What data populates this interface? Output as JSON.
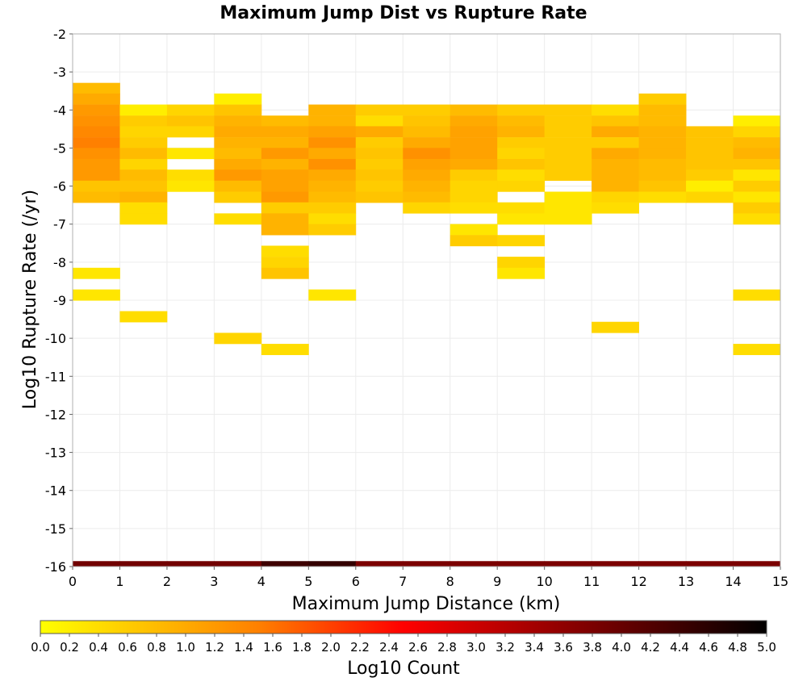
{
  "chart_data": {
    "type": "heatmap",
    "title": "Maximum Jump Dist vs Rupture Rate",
    "xlabel": "Maximum Jump Distance (km)",
    "ylabel": "Log10 Rupture Rate (/yr)",
    "xlim": [
      0,
      15
    ],
    "ylim": [
      -16,
      -2
    ],
    "x_ticks": [
      "0",
      "1",
      "2",
      "3",
      "4",
      "5",
      "6",
      "7",
      "8",
      "9",
      "10",
      "11",
      "12",
      "13",
      "14",
      "15"
    ],
    "y_ticks": [
      "-2",
      "-3",
      "-4",
      "-5",
      "-6",
      "-7",
      "-8",
      "-9",
      "-10",
      "-11",
      "-12",
      "-13",
      "-14",
      "-15",
      "-16"
    ],
    "x_bin_width": 1,
    "y_bin_width": 0.286,
    "grid": true,
    "colorbar": {
      "label": "Log10 Count",
      "range": [
        0,
        5
      ],
      "ticks": [
        "0.0",
        "0.2",
        "0.4",
        "0.6",
        "0.8",
        "1.0",
        "1.2",
        "1.4",
        "1.6",
        "1.8",
        "2.0",
        "2.2",
        "2.4",
        "2.6",
        "2.8",
        "3.0",
        "3.2",
        "3.4",
        "3.6",
        "3.8",
        "4.0",
        "4.2",
        "4.4",
        "4.6",
        "4.8",
        "5.0"
      ],
      "colors": [
        "#ffff00",
        "#ff8000",
        "#ff0000",
        "#800000",
        "#000000"
      ]
    },
    "bins": [
      {
        "x": 0,
        "y": -3.43,
        "v": 0.8
      },
      {
        "x": 0,
        "y": -3.71,
        "v": 1.0
      },
      {
        "x": 0,
        "y": -4.0,
        "v": 1.2
      },
      {
        "x": 0,
        "y": -4.29,
        "v": 1.3
      },
      {
        "x": 0,
        "y": -4.57,
        "v": 1.4
      },
      {
        "x": 0,
        "y": -4.86,
        "v": 1.5
      },
      {
        "x": 0,
        "y": -5.14,
        "v": 1.3
      },
      {
        "x": 0,
        "y": -5.43,
        "v": 1.2
      },
      {
        "x": 0,
        "y": -5.71,
        "v": 1.2
      },
      {
        "x": 0,
        "y": -6.0,
        "v": 0.7
      },
      {
        "x": 0,
        "y": -6.29,
        "v": 0.8
      },
      {
        "x": 0,
        "y": -8.29,
        "v": 0.3
      },
      {
        "x": 0,
        "y": -8.86,
        "v": 0.3
      },
      {
        "x": 1,
        "y": -4.0,
        "v": 0.2
      },
      {
        "x": 1,
        "y": -4.29,
        "v": 0.6
      },
      {
        "x": 1,
        "y": -4.57,
        "v": 0.5
      },
      {
        "x": 1,
        "y": -4.86,
        "v": 0.6
      },
      {
        "x": 1,
        "y": -5.14,
        "v": 0.8
      },
      {
        "x": 1,
        "y": -5.43,
        "v": 0.5
      },
      {
        "x": 1,
        "y": -5.71,
        "v": 0.8
      },
      {
        "x": 1,
        "y": -6.0,
        "v": 0.7
      },
      {
        "x": 1,
        "y": -6.29,
        "v": 0.9
      },
      {
        "x": 1,
        "y": -6.57,
        "v": 0.4
      },
      {
        "x": 1,
        "y": -6.86,
        "v": 0.4
      },
      {
        "x": 1,
        "y": -9.43,
        "v": 0.4
      },
      {
        "x": 2,
        "y": -4.0,
        "v": 0.5
      },
      {
        "x": 2,
        "y": -4.29,
        "v": 0.7
      },
      {
        "x": 2,
        "y": -4.57,
        "v": 0.5
      },
      {
        "x": 2,
        "y": -5.14,
        "v": 0.3
      },
      {
        "x": 2,
        "y": -5.71,
        "v": 0.4
      },
      {
        "x": 2,
        "y": -6.0,
        "v": 0.3
      },
      {
        "x": 3,
        "y": -3.71,
        "v": 0.2
      },
      {
        "x": 3,
        "y": -4.0,
        "v": 0.7
      },
      {
        "x": 3,
        "y": -4.29,
        "v": 0.9
      },
      {
        "x": 3,
        "y": -4.57,
        "v": 1.0
      },
      {
        "x": 3,
        "y": -4.86,
        "v": 0.9
      },
      {
        "x": 3,
        "y": -5.14,
        "v": 0.8
      },
      {
        "x": 3,
        "y": -5.43,
        "v": 1.0
      },
      {
        "x": 3,
        "y": -5.71,
        "v": 1.2
      },
      {
        "x": 3,
        "y": -6.0,
        "v": 0.8
      },
      {
        "x": 3,
        "y": -6.29,
        "v": 0.6
      },
      {
        "x": 3,
        "y": -6.86,
        "v": 0.4
      },
      {
        "x": 3,
        "y": -10.0,
        "v": 0.5
      },
      {
        "x": 4,
        "y": -4.29,
        "v": 0.8
      },
      {
        "x": 4,
        "y": -4.57,
        "v": 1.0
      },
      {
        "x": 4,
        "y": -4.86,
        "v": 0.9
      },
      {
        "x": 4,
        "y": -5.14,
        "v": 1.2
      },
      {
        "x": 4,
        "y": -5.43,
        "v": 0.9
      },
      {
        "x": 4,
        "y": -5.71,
        "v": 1.1
      },
      {
        "x": 4,
        "y": -6.0,
        "v": 1.1
      },
      {
        "x": 4,
        "y": -6.29,
        "v": 1.2
      },
      {
        "x": 4,
        "y": -6.57,
        "v": 0.6
      },
      {
        "x": 4,
        "y": -6.86,
        "v": 0.9
      },
      {
        "x": 4,
        "y": -7.14,
        "v": 0.9
      },
      {
        "x": 4,
        "y": -7.71,
        "v": 0.4
      },
      {
        "x": 4,
        "y": -8.0,
        "v": 0.5
      },
      {
        "x": 4,
        "y": -8.29,
        "v": 0.7
      },
      {
        "x": 4,
        "y": -10.29,
        "v": 0.4
      },
      {
        "x": 5,
        "y": -4.0,
        "v": 0.9
      },
      {
        "x": 5,
        "y": -4.29,
        "v": 0.9
      },
      {
        "x": 5,
        "y": -4.57,
        "v": 1.1
      },
      {
        "x": 5,
        "y": -4.86,
        "v": 1.3
      },
      {
        "x": 5,
        "y": -5.14,
        "v": 1.0
      },
      {
        "x": 5,
        "y": -5.43,
        "v": 1.3
      },
      {
        "x": 5,
        "y": -5.71,
        "v": 1.0
      },
      {
        "x": 5,
        "y": -6.0,
        "v": 0.9
      },
      {
        "x": 5,
        "y": -6.29,
        "v": 0.8
      },
      {
        "x": 5,
        "y": -6.57,
        "v": 0.6
      },
      {
        "x": 5,
        "y": -6.86,
        "v": 0.4
      },
      {
        "x": 5,
        "y": -7.14,
        "v": 0.6
      },
      {
        "x": 5,
        "y": -8.86,
        "v": 0.3
      },
      {
        "x": 6,
        "y": -4.0,
        "v": 0.6
      },
      {
        "x": 6,
        "y": -4.29,
        "v": 0.4
      },
      {
        "x": 6,
        "y": -4.57,
        "v": 1.0
      },
      {
        "x": 6,
        "y": -4.86,
        "v": 0.6
      },
      {
        "x": 6,
        "y": -5.14,
        "v": 0.7
      },
      {
        "x": 6,
        "y": -5.43,
        "v": 0.6
      },
      {
        "x": 6,
        "y": -5.71,
        "v": 0.7
      },
      {
        "x": 6,
        "y": -6.0,
        "v": 0.6
      },
      {
        "x": 6,
        "y": -6.29,
        "v": 0.7
      },
      {
        "x": 7,
        "y": -4.0,
        "v": 0.6
      },
      {
        "x": 7,
        "y": -4.29,
        "v": 0.7
      },
      {
        "x": 7,
        "y": -4.57,
        "v": 0.8
      },
      {
        "x": 7,
        "y": -4.86,
        "v": 1.0
      },
      {
        "x": 7,
        "y": -5.14,
        "v": 1.3
      },
      {
        "x": 7,
        "y": -5.43,
        "v": 1.1
      },
      {
        "x": 7,
        "y": -5.71,
        "v": 1.0
      },
      {
        "x": 7,
        "y": -6.0,
        "v": 0.9
      },
      {
        "x": 7,
        "y": -6.29,
        "v": 0.8
      },
      {
        "x": 7,
        "y": -6.57,
        "v": 0.5
      },
      {
        "x": 8,
        "y": -4.0,
        "v": 0.8
      },
      {
        "x": 8,
        "y": -4.29,
        "v": 1.0
      },
      {
        "x": 8,
        "y": -4.57,
        "v": 1.1
      },
      {
        "x": 8,
        "y": -4.86,
        "v": 1.1
      },
      {
        "x": 8,
        "y": -5.14,
        "v": 1.1
      },
      {
        "x": 8,
        "y": -5.43,
        "v": 1.0
      },
      {
        "x": 8,
        "y": -5.71,
        "v": 0.6
      },
      {
        "x": 8,
        "y": -6.0,
        "v": 0.5
      },
      {
        "x": 8,
        "y": -6.29,
        "v": 0.5
      },
      {
        "x": 8,
        "y": -6.57,
        "v": 0.4
      },
      {
        "x": 8,
        "y": -7.14,
        "v": 0.3
      },
      {
        "x": 8,
        "y": -7.43,
        "v": 0.6
      },
      {
        "x": 9,
        "y": -4.0,
        "v": 0.6
      },
      {
        "x": 9,
        "y": -4.29,
        "v": 0.8
      },
      {
        "x": 9,
        "y": -4.57,
        "v": 0.9
      },
      {
        "x": 9,
        "y": -4.86,
        "v": 0.6
      },
      {
        "x": 9,
        "y": -5.14,
        "v": 0.5
      },
      {
        "x": 9,
        "y": -5.43,
        "v": 0.7
      },
      {
        "x": 9,
        "y": -5.71,
        "v": 0.4
      },
      {
        "x": 9,
        "y": -6.0,
        "v": 0.5
      },
      {
        "x": 9,
        "y": -6.57,
        "v": 0.4
      },
      {
        "x": 9,
        "y": -6.86,
        "v": 0.3
      },
      {
        "x": 9,
        "y": -7.43,
        "v": 0.5
      },
      {
        "x": 9,
        "y": -8.0,
        "v": 0.5
      },
      {
        "x": 9,
        "y": -8.29,
        "v": 0.3
      },
      {
        "x": 10,
        "y": -4.0,
        "v": 0.6
      },
      {
        "x": 10,
        "y": -4.29,
        "v": 0.6
      },
      {
        "x": 10,
        "y": -4.57,
        "v": 0.6
      },
      {
        "x": 10,
        "y": -4.86,
        "v": 0.6
      },
      {
        "x": 10,
        "y": -5.14,
        "v": 0.6
      },
      {
        "x": 10,
        "y": -5.43,
        "v": 0.6
      },
      {
        "x": 10,
        "y": -5.71,
        "v": 0.6
      },
      {
        "x": 10,
        "y": -6.29,
        "v": 0.3
      },
      {
        "x": 10,
        "y": -6.57,
        "v": 0.3
      },
      {
        "x": 10,
        "y": -6.86,
        "v": 0.3
      },
      {
        "x": 11,
        "y": -4.0,
        "v": 0.4
      },
      {
        "x": 11,
        "y": -4.29,
        "v": 0.7
      },
      {
        "x": 11,
        "y": -4.57,
        "v": 1.0
      },
      {
        "x": 11,
        "y": -4.86,
        "v": 0.6
      },
      {
        "x": 11,
        "y": -5.14,
        "v": 1.0
      },
      {
        "x": 11,
        "y": -5.43,
        "v": 0.9
      },
      {
        "x": 11,
        "y": -5.71,
        "v": 0.9
      },
      {
        "x": 11,
        "y": -6.0,
        "v": 0.9
      },
      {
        "x": 11,
        "y": -6.29,
        "v": 0.5
      },
      {
        "x": 11,
        "y": -6.57,
        "v": 0.4
      },
      {
        "x": 11,
        "y": -9.71,
        "v": 0.5
      },
      {
        "x": 12,
        "y": -3.71,
        "v": 0.6
      },
      {
        "x": 12,
        "y": -4.0,
        "v": 0.8
      },
      {
        "x": 12,
        "y": -4.29,
        "v": 0.8
      },
      {
        "x": 12,
        "y": -4.57,
        "v": 0.9
      },
      {
        "x": 12,
        "y": -4.86,
        "v": 0.9
      },
      {
        "x": 12,
        "y": -5.14,
        "v": 0.9
      },
      {
        "x": 12,
        "y": -5.43,
        "v": 0.8
      },
      {
        "x": 12,
        "y": -5.71,
        "v": 0.8
      },
      {
        "x": 12,
        "y": -6.0,
        "v": 0.7
      },
      {
        "x": 12,
        "y": -6.29,
        "v": 0.4
      },
      {
        "x": 13,
        "y": -4.57,
        "v": 0.7
      },
      {
        "x": 13,
        "y": -4.86,
        "v": 0.7
      },
      {
        "x": 13,
        "y": -5.14,
        "v": 0.7
      },
      {
        "x": 13,
        "y": -5.43,
        "v": 0.7
      },
      {
        "x": 13,
        "y": -5.71,
        "v": 0.6
      },
      {
        "x": 13,
        "y": -6.0,
        "v": 0.2
      },
      {
        "x": 13,
        "y": -6.29,
        "v": 0.5
      },
      {
        "x": 14,
        "y": -4.29,
        "v": 0.2
      },
      {
        "x": 14,
        "y": -4.57,
        "v": 0.5
      },
      {
        "x": 14,
        "y": -4.86,
        "v": 0.8
      },
      {
        "x": 14,
        "y": -5.14,
        "v": 0.9
      },
      {
        "x": 14,
        "y": -5.43,
        "v": 0.7
      },
      {
        "x": 14,
        "y": -5.71,
        "v": 0.3
      },
      {
        "x": 14,
        "y": -6.0,
        "v": 0.6
      },
      {
        "x": 14,
        "y": -6.29,
        "v": 0.3
      },
      {
        "x": 14,
        "y": -6.57,
        "v": 0.6
      },
      {
        "x": 14,
        "y": -6.86,
        "v": 0.4
      },
      {
        "x": 14,
        "y": -8.86,
        "v": 0.4
      },
      {
        "x": 14,
        "y": -10.29,
        "v": 0.4
      }
    ],
    "bottom_row": {
      "y": -16,
      "values": [
        3.9,
        3.9,
        3.9,
        3.9,
        4.4,
        4.5,
        3.8,
        3.8,
        3.8,
        3.8,
        3.8,
        3.8,
        3.8,
        3.8,
        3.8
      ]
    }
  }
}
